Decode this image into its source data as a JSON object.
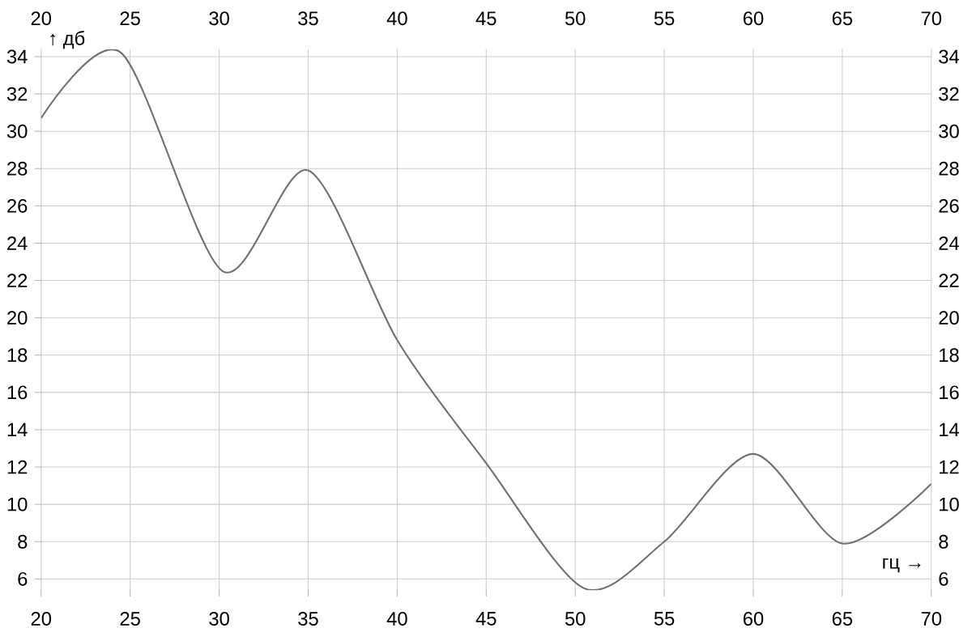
{
  "chart_data": {
    "type": "line",
    "xlabel": "гц →",
    "ylabel": "↑ дб",
    "x": [
      20,
      24.5,
      30.2,
      35,
      40,
      45,
      50.5,
      55,
      60,
      65,
      70
    ],
    "series": [
      {
        "color": "#707070",
        "values": [
          30.7,
          34.2,
          22.5,
          27.9,
          18.8,
          12.2,
          5.5,
          8,
          12.7,
          7.9,
          11.1
        ]
      }
    ],
    "xlim": [
      20,
      70
    ],
    "ylim": [
      5.4,
      34.4
    ],
    "xticks": [
      20,
      25,
      30,
      35,
      40,
      45,
      50,
      55,
      60,
      65,
      70
    ],
    "yticks": [
      6,
      8,
      10,
      12,
      14,
      16,
      18,
      20,
      22,
      24,
      26,
      28,
      30,
      32,
      34
    ],
    "x2lim": [
      20,
      70
    ],
    "y2lim": [
      5.4,
      34.4
    ],
    "x2ticks": [
      20,
      25,
      30,
      35,
      40,
      45,
      50,
      55,
      60,
      65,
      70
    ],
    "y2ticks": [
      6,
      8,
      10,
      12,
      14,
      16,
      18,
      20,
      22,
      24,
      26,
      28,
      30,
      32,
      34
    ],
    "grid": true,
    "marker": "none",
    "line_style": "solid"
  }
}
